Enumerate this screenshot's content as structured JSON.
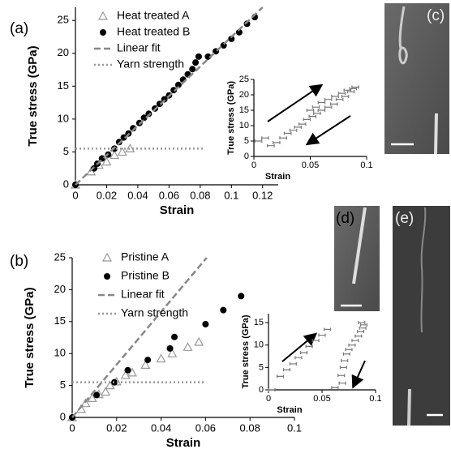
{
  "panels": {
    "a": "(a)",
    "b": "(b)",
    "c": "(c)",
    "d": "(d)",
    "e": "(e)"
  },
  "chart_data": [
    {
      "type": "scatter",
      "xlabel": "Strain",
      "ylabel": "True stress (GPa)",
      "xlim": [
        0,
        0.13
      ],
      "ylim": [
        0,
        27
      ],
      "xticks": [
        0,
        0.02,
        0.04,
        0.06,
        0.08,
        0.1,
        0.12
      ],
      "yticks": [
        0,
        5,
        10,
        15,
        20,
        25
      ],
      "series": [
        {
          "name": "Heat treated A",
          "color": "#999999",
          "marker": "triangle",
          "x": [
            0,
            0.01,
            0.015,
            0.02,
            0.025,
            0.03,
            0.035
          ],
          "values": [
            0,
            2,
            3,
            3.5,
            4.5,
            5,
            5.5
          ]
        },
        {
          "name": "Heat treated B",
          "color": "#000000",
          "marker": "circle",
          "x": [
            0,
            0.012,
            0.014,
            0.017,
            0.021,
            0.025,
            0.028,
            0.031,
            0.034,
            0.037,
            0.041,
            0.044,
            0.047,
            0.051,
            0.054,
            0.057,
            0.06,
            0.063,
            0.066,
            0.069,
            0.072,
            0.075,
            0.077,
            0.079,
            0.085,
            0.09,
            0.095,
            0.1,
            0.105,
            0.11,
            0.115
          ],
          "values": [
            0,
            2.5,
            3.2,
            4,
            4.6,
            5.5,
            6.5,
            7.2,
            7.8,
            8.6,
            9.4,
            10.2,
            10.8,
            11.6,
            12.3,
            13,
            13.6,
            14.4,
            15.2,
            16,
            16.8,
            17.6,
            18.6,
            19.5,
            19.5,
            20.3,
            21.2,
            22.2,
            23.2,
            24.5,
            25.5
          ]
        },
        {
          "name": "Linear fit",
          "color": "#888888",
          "marker": "dash",
          "x": [
            0,
            0.12
          ],
          "values": [
            0,
            27
          ]
        },
        {
          "name": "Yarn strength",
          "color": "#999999",
          "marker": "dot",
          "x": [
            0,
            0.082
          ],
          "values": [
            5.5,
            5.5
          ]
        }
      ]
    },
    {
      "type": "scatter",
      "xlabel": "Strain",
      "ylabel": "True stress (GPa)",
      "xlim": [
        0,
        0.1
      ],
      "ylim": [
        0,
        25
      ],
      "xticks": [
        0,
        0.05,
        0.1
      ],
      "yticks": [
        0,
        5,
        10,
        15,
        20,
        25
      ],
      "series": [
        {
          "color": "#777777",
          "marker": "errbar",
          "xerr": 0.003,
          "x": [
            0.004,
            0.01,
            0.015,
            0.02,
            0.026,
            0.03,
            0.035,
            0.039,
            0.043,
            0.047,
            0.052,
            0.056,
            0.06,
            0.066,
            0.071,
            0.076,
            0.081,
            0.086,
            0.09,
            0.088,
            0.083,
            0.078,
            0.072,
            0.066,
            0.06,
            0.055,
            0.05
          ],
          "values": [
            5,
            6,
            3.5,
            4.5,
            6,
            7.5,
            8.5,
            9.5,
            10.5,
            12,
            13,
            14,
            15,
            16,
            17,
            18.5,
            19.5,
            21,
            22.5,
            22,
            21.5,
            20.5,
            19.5,
            18.5,
            17.5,
            16,
            15
          ]
        }
      ]
    },
    {
      "type": "scatter",
      "xlabel": "Strain",
      "ylabel": "True stress (GPa)",
      "xlim": [
        0,
        0.1
      ],
      "ylim": [
        0,
        25
      ],
      "xticks": [
        0,
        0.02,
        0.04,
        0.06,
        0.08,
        0.1
      ],
      "yticks": [
        0,
        5,
        10,
        15,
        20,
        25
      ],
      "series": [
        {
          "name": "Pristine A",
          "color": "#999999",
          "marker": "triangle",
          "x": [
            0,
            0.004,
            0.006,
            0.009,
            0.012,
            0.015,
            0.017,
            0.02,
            0.024,
            0.027,
            0.033,
            0.04,
            0.045,
            0.052,
            0.057
          ],
          "values": [
            0,
            1.3,
            2.2,
            3,
            3.6,
            4,
            5,
            5.6,
            6.6,
            7,
            8.2,
            9.2,
            10,
            11,
            11.8
          ]
        },
        {
          "name": "Pristine B",
          "color": "#000000",
          "marker": "circle",
          "x": [
            0,
            0.011,
            0.019,
            0.025,
            0.034,
            0.044,
            0.046,
            0.06,
            0.068,
            0.076
          ],
          "values": [
            0,
            3.5,
            5.5,
            7.4,
            9,
            10.8,
            12.6,
            14.6,
            16.8,
            19
          ]
        },
        {
          "name": "Linear fit",
          "color": "#888888",
          "marker": "dash",
          "x": [
            0,
            0.0605
          ],
          "values": [
            0,
            25
          ]
        },
        {
          "name": "Yarn strength",
          "color": "#999999",
          "marker": "dot",
          "x": [
            0,
            0.06
          ],
          "values": [
            5.5,
            5.5
          ]
        }
      ]
    },
    {
      "type": "scatter",
      "xlabel": "Strain",
      "ylabel": "True stress (GPa)",
      "xlim": [
        0,
        0.1
      ],
      "ylim": [
        0,
        17
      ],
      "xticks": [
        0,
        0.05,
        0.1
      ],
      "yticks": [
        0,
        5,
        10,
        15
      ],
      "series": [
        {
          "color": "#777777",
          "marker": "errbar",
          "xerr": 0.003,
          "x": [
            0.003,
            0.011,
            0.017,
            0.023,
            0.028,
            0.033,
            0.038,
            0.044,
            0.05,
            0.055,
            0.062,
            0.069,
            0.068,
            0.07,
            0.071,
            0.073,
            0.075,
            0.078,
            0.081,
            0.084,
            0.086,
            0.088,
            0.089,
            0.087
          ],
          "values": [
            0,
            3,
            4.5,
            5.8,
            7.2,
            8.3,
            9.7,
            11,
            12.2,
            13.5,
            0.5,
            1.5,
            3.2,
            5,
            6.5,
            8,
            9,
            10,
            11,
            12,
            13,
            13.8,
            14.5,
            15
          ]
        }
      ]
    }
  ]
}
